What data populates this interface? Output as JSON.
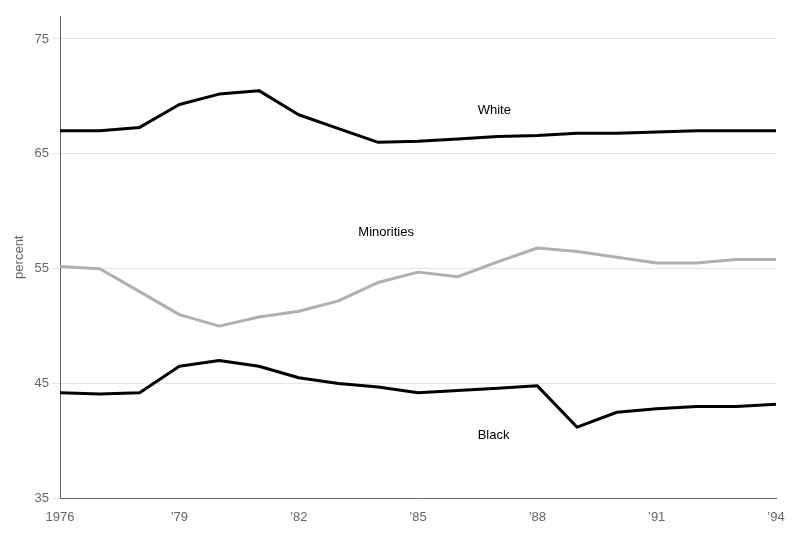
{
  "chart_data": {
    "type": "line",
    "ylabel": "percent",
    "x": [
      1976,
      1977,
      1978,
      1979,
      1980,
      1981,
      1982,
      1983,
      1984,
      1985,
      1986,
      1987,
      1988,
      1989,
      1990,
      1991,
      1992,
      1993,
      1994
    ],
    "series": [
      {
        "name": "White",
        "color": "#000000",
        "values": [
          67.0,
          67.0,
          67.3,
          69.3,
          70.2,
          70.5,
          68.4,
          67.2,
          66.0,
          66.1,
          66.3,
          66.5,
          66.6,
          66.8,
          66.8,
          66.9,
          67.0,
          67.0,
          67.0
        ]
      },
      {
        "name": "Minorities",
        "color": "#b0b0b0",
        "values": [
          55.2,
          55.0,
          53.0,
          51.0,
          50.0,
          50.8,
          51.3,
          52.2,
          53.8,
          54.7,
          54.3,
          55.6,
          56.8,
          56.5,
          56.0,
          55.5,
          55.5,
          55.8,
          55.8
        ]
      },
      {
        "name": "Black",
        "color": "#000000",
        "values": [
          44.2,
          44.1,
          44.2,
          46.5,
          47.0,
          46.5,
          45.5,
          45.0,
          44.7,
          44.2,
          44.4,
          44.6,
          44.8,
          41.2,
          42.5,
          42.8,
          43.0,
          43.0,
          43.2
        ]
      }
    ],
    "annotations": [
      {
        "text": "White",
        "x": 1986.5,
        "y": 68.8
      },
      {
        "text": "Minorities",
        "x": 1983.5,
        "y": 58.2
      },
      {
        "text": "Black",
        "x": 1986.5,
        "y": 40.5
      }
    ],
    "xlim": [
      1976,
      1994
    ],
    "xticks": [
      1976,
      {
        "value": 1979,
        "label": "’79"
      },
      {
        "value": 1982,
        "label": "’82"
      },
      {
        "value": 1985,
        "label": "’85"
      },
      {
        "value": 1988,
        "label": "’88"
      },
      {
        "value": 1991,
        "label": "’91"
      },
      {
        "value": 1994,
        "label": "’94"
      }
    ],
    "ylim": [
      35,
      77
    ],
    "yticks": [
      35,
      45,
      55,
      65,
      75
    ],
    "grid": true
  }
}
